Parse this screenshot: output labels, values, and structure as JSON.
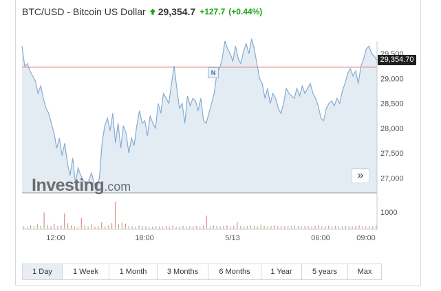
{
  "header": {
    "title": "BTC/USD - Bitcoin US Dollar",
    "price": "29,354.7",
    "change": "+127.7",
    "change_pct": "(+0.44%)",
    "direction_icon": "up-arrow-icon",
    "change_color": "#14a514"
  },
  "chart": {
    "last_price_label": "29,354.70",
    "news_marker": "N",
    "logo_main": "Investing",
    "logo_suffix": ".com",
    "line_color": "#87abd1",
    "fill_color": "#e3ebf3",
    "reference_line_color": "#e57373",
    "y_ticks": [
      "29,500",
      "29,000",
      "28,500",
      "28,000",
      "27,500",
      "27,000"
    ],
    "volume_tick": "1000",
    "x_ticks": [
      "12:00",
      "18:00",
      "5/13",
      "06:00",
      "09:00"
    ],
    "scroll_button": "»"
  },
  "tabs": [
    {
      "label": "1 Day",
      "active": true
    },
    {
      "label": "1 Week",
      "active": false
    },
    {
      "label": "1 Month",
      "active": false
    },
    {
      "label": "3 Months",
      "active": false
    },
    {
      "label": "6 Months",
      "active": false
    },
    {
      "label": "1 Year",
      "active": false
    },
    {
      "label": "5 years",
      "active": false
    },
    {
      "label": "Max",
      "active": false
    }
  ],
  "chart_data": {
    "type": "area",
    "ylim": [
      26700,
      29750
    ],
    "reference_value": 29226.9,
    "last_value": 29354.7,
    "x_tick_labels": [
      "12:00",
      "18:00",
      "5/13",
      "06:00",
      "09:00"
    ],
    "series": [
      {
        "values": [
          29650,
          29250,
          29300,
          29150,
          29050,
          28950,
          28700,
          28850,
          28600,
          28400,
          28300,
          28100,
          27900,
          27600,
          27800,
          27450,
          27700,
          27300,
          27050,
          27400,
          26900,
          27200,
          27050,
          26950,
          26880,
          26950,
          27100,
          26900,
          26800,
          27000,
          27700,
          28050,
          28200,
          27950,
          28300,
          27700,
          28100,
          27600,
          28050,
          27900,
          27500,
          27800,
          27650,
          28050,
          28350,
          28100,
          28150,
          27850,
          28250,
          28100,
          28000,
          28500,
          28300,
          28700,
          28600,
          28500,
          28900,
          29250,
          28800,
          28400,
          28500,
          28100,
          28650,
          28450,
          28600,
          28550,
          28350,
          28600,
          28150,
          28100,
          28300,
          28500,
          28700,
          29100,
          29200,
          29400,
          29750,
          29600,
          29500,
          29350,
          29650,
          29400,
          29300,
          29550,
          29700,
          29500,
          29800,
          29600,
          29300,
          29000,
          28900,
          28600,
          28800,
          28500,
          28700,
          28600,
          28400,
          28300,
          28500,
          28800,
          28700,
          28650,
          28600,
          28800,
          28650,
          28850,
          28700,
          28800,
          28900,
          28700,
          28600,
          28450,
          28200,
          28150,
          28400,
          28500,
          28550,
          28450,
          28600,
          28500,
          28750,
          28900,
          29100,
          29200,
          29050,
          29150,
          28900,
          29250,
          29400,
          29600,
          29650,
          29500,
          29450,
          29354.7
        ]
      }
    ],
    "volume": [
      40,
      30,
      60,
      45,
      80,
      50,
      300,
      70,
      40,
      90,
      50,
      60,
      280,
      100,
      60,
      40,
      30,
      200,
      60,
      40,
      80,
      30,
      50,
      120,
      40,
      60,
      100,
      500,
      80,
      110,
      90,
      50,
      40,
      30,
      60,
      50,
      40,
      35,
      30,
      45,
      40,
      30,
      50,
      40,
      60,
      30,
      40,
      50,
      35,
      45,
      40,
      50,
      40,
      60,
      240,
      40,
      60,
      50,
      40,
      50,
      60,
      40,
      50,
      120,
      50,
      40,
      45,
      60,
      50,
      40,
      70,
      50,
      40,
      50,
      60,
      45,
      50,
      40,
      55,
      45,
      60,
      50,
      40,
      50,
      45,
      40,
      50,
      60,
      45,
      50,
      55,
      40,
      50,
      45,
      40,
      50,
      45,
      40,
      50,
      60,
      45,
      40,
      50,
      45,
      55
    ]
  }
}
